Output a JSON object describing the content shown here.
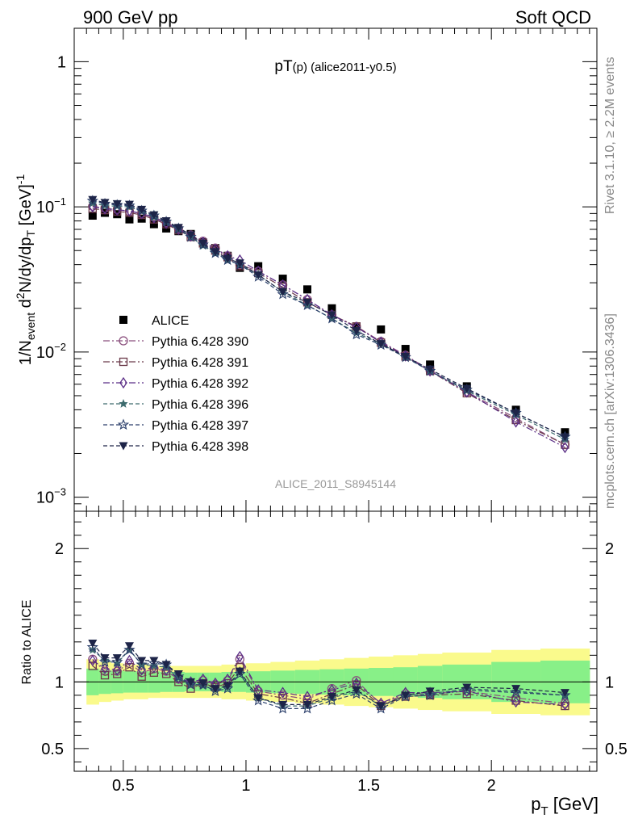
{
  "header": {
    "left": "900 GeV pp",
    "right": "Soft QCD"
  },
  "side": {
    "rivet": "Rivet 3.1.10, ≥ 2.2M events",
    "mcplots": "mcplots.cern.ch [arXiv:1306.3436]"
  },
  "chart_data": [
    {
      "type": "scatter",
      "panel": "main",
      "title_main": "pT",
      "title_sub": "(p)",
      "title_tail": " (alice2011-y0.5)",
      "analysis_label": "ALICE_2011_S8945144",
      "ylabel": "1/N_event d²N/dy/dp_T [GeV]⁻¹",
      "yscale": "log",
      "xlim": [
        0.3,
        2.43
      ],
      "ylim": [
        0.0008,
        1.7
      ],
      "yticks": [
        {
          "v": 1,
          "base": "1",
          "exp": ""
        },
        {
          "v": 0.1,
          "base": "10",
          "exp": "−1"
        },
        {
          "v": 0.01,
          "base": "10",
          "exp": "−2"
        },
        {
          "v": 0.001,
          "base": "10",
          "exp": "−3"
        }
      ],
      "x": [
        0.375,
        0.425,
        0.475,
        0.525,
        0.575,
        0.625,
        0.675,
        0.725,
        0.775,
        0.825,
        0.875,
        0.925,
        0.975,
        1.05,
        1.15,
        1.25,
        1.35,
        1.45,
        1.55,
        1.65,
        1.75,
        1.9,
        2.1,
        2.3
      ],
      "series": [
        {
          "name": "ALICE",
          "color": "#000000",
          "marker": "square",
          "dash": "none",
          "values": [
            0.087,
            0.091,
            0.089,
            0.082,
            0.083,
            0.076,
            0.071,
            0.068,
            0.065,
            0.057,
            0.052,
            0.046,
            0.038,
            0.039,
            0.032,
            0.027,
            0.02,
            0.015,
            0.0143,
            0.0105,
            0.0082,
            0.0058,
            0.004,
            0.0028
          ]
        },
        {
          "name": "Pythia 6.428 390",
          "color": "#8a4f7d",
          "marker": "circle-open",
          "dash": "8,3,2,3",
          "values": [
            0.101,
            0.098,
            0.096,
            0.093,
            0.09,
            0.085,
            0.078,
            0.071,
            0.064,
            0.058,
            0.052,
            0.046,
            0.04,
            0.036,
            0.029,
            0.023,
            0.018,
            0.015,
            0.0118,
            0.0095,
            0.0075,
            0.0053,
            0.0035,
            0.0023
          ]
        },
        {
          "name": "Pythia 6.428 391",
          "color": "#6b3a4a",
          "marker": "square-open",
          "dash": "8,3,2,3",
          "values": [
            0.097,
            0.095,
            0.093,
            0.091,
            0.088,
            0.082,
            0.076,
            0.069,
            0.062,
            0.056,
            0.05,
            0.045,
            0.039,
            0.035,
            0.028,
            0.022,
            0.018,
            0.015,
            0.0116,
            0.0093,
            0.0074,
            0.0052,
            0.0034,
            0.0023
          ]
        },
        {
          "name": "Pythia 6.428 392",
          "color": "#5a2d86",
          "marker": "diamond-open",
          "dash": "8,3,2,3",
          "values": [
            0.1,
            0.097,
            0.095,
            0.094,
            0.09,
            0.084,
            0.077,
            0.07,
            0.063,
            0.057,
            0.051,
            0.046,
            0.043,
            0.036,
            0.029,
            0.023,
            0.018,
            0.0148,
            0.0117,
            0.0094,
            0.0074,
            0.0053,
            0.0033,
            0.0022
          ]
        },
        {
          "name": "Pythia 6.428 396",
          "color": "#3d6b6e",
          "marker": "star-filled",
          "dash": "5,3",
          "values": [
            0.106,
            0.102,
            0.101,
            0.1,
            0.093,
            0.085,
            0.078,
            0.07,
            0.062,
            0.054,
            0.048,
            0.043,
            0.04,
            0.034,
            0.026,
            0.021,
            0.017,
            0.0135,
            0.0114,
            0.0092,
            0.0074,
            0.0054,
            0.0037,
            0.0025
          ]
        },
        {
          "name": "Pythia 6.428 397",
          "color": "#2b3f6b",
          "marker": "star-open",
          "dash": "5,3",
          "values": [
            0.11,
            0.105,
            0.103,
            0.102,
            0.094,
            0.087,
            0.079,
            0.071,
            0.062,
            0.055,
            0.048,
            0.043,
            0.04,
            0.033,
            0.025,
            0.021,
            0.017,
            0.0132,
            0.0112,
            0.0092,
            0.0074,
            0.0055,
            0.0038,
            0.0026
          ]
        },
        {
          "name": "Pythia 6.428 398",
          "color": "#1d2448",
          "marker": "triangle-down-filled",
          "dash": "5,3",
          "values": [
            0.112,
            0.107,
            0.105,
            0.104,
            0.096,
            0.088,
            0.08,
            0.072,
            0.064,
            0.056,
            0.049,
            0.044,
            0.041,
            0.034,
            0.026,
            0.022,
            0.018,
            0.014,
            0.0114,
            0.0093,
            0.0076,
            0.0056,
            0.0038,
            0.0026
          ]
        }
      ]
    },
    {
      "type": "scatter",
      "panel": "ratio",
      "ylabel": "Ratio to ALICE",
      "xlabel_main": "p",
      "xlabel_sub": "T",
      "xlabel_tail": " [GeV]",
      "xlim": [
        0.3,
        2.43
      ],
      "ylim": [
        0.33,
        2.28
      ],
      "xticks": [
        {
          "v": 0.5,
          "label": "0.5"
        },
        {
          "v": 1,
          "label": "1"
        },
        {
          "v": 1.5,
          "label": "1.5"
        },
        {
          "v": 2,
          "label": "2"
        }
      ],
      "yticks": [
        {
          "v": 0.5,
          "label": "0.5"
        },
        {
          "v": 1,
          "label": "1"
        },
        {
          "v": 2,
          "label": "2"
        }
      ],
      "band_edges": [
        0.35,
        0.4,
        0.45,
        0.5,
        0.55,
        0.6,
        0.65,
        0.7,
        0.75,
        0.8,
        0.85,
        0.9,
        0.95,
        1.0,
        1.1,
        1.2,
        1.3,
        1.4,
        1.5,
        1.6,
        1.7,
        1.8,
        2.0,
        2.2,
        2.4
      ],
      "band_inner": [
        0.1,
        0.09,
        0.085,
        0.08,
        0.08,
        0.08,
        0.075,
        0.075,
        0.07,
        0.07,
        0.07,
        0.075,
        0.075,
        0.08,
        0.085,
        0.09,
        0.095,
        0.1,
        0.105,
        0.11,
        0.12,
        0.13,
        0.15,
        0.16
      ],
      "band_outer": [
        0.17,
        0.15,
        0.14,
        0.13,
        0.13,
        0.12,
        0.12,
        0.12,
        0.12,
        0.12,
        0.12,
        0.13,
        0.13,
        0.14,
        0.15,
        0.16,
        0.17,
        0.18,
        0.19,
        0.2,
        0.21,
        0.22,
        0.24,
        0.25
      ],
      "band_colors": {
        "inner": "#88f088",
        "outer": "#fafa8c"
      },
      "x": [
        0.375,
        0.425,
        0.475,
        0.525,
        0.575,
        0.625,
        0.675,
        0.725,
        0.775,
        0.825,
        0.875,
        0.925,
        0.975,
        1.05,
        1.15,
        1.25,
        1.35,
        1.45,
        1.55,
        1.65,
        1.75,
        1.9,
        2.1,
        2.3
      ],
      "series": [
        {
          "name": "Pythia 6.428 390",
          "color": "#8a4f7d",
          "marker": "circle-open",
          "dash": "8,3,2,3",
          "values": [
            1.17,
            1.08,
            1.08,
            1.14,
            1.07,
            1.1,
            1.08,
            1.02,
            0.99,
            1.01,
            0.98,
            1.01,
            1.17,
            0.93,
            0.9,
            0.87,
            0.95,
            1.01,
            0.83,
            0.91,
            0.91,
            0.93,
            0.88,
            0.84
          ]
        },
        {
          "name": "Pythia 6.428 391",
          "color": "#6b3a4a",
          "marker": "square-open",
          "dash": "8,3,2,3",
          "values": [
            1.12,
            1.05,
            1.06,
            1.11,
            1.04,
            1.07,
            1.06,
            1.0,
            0.95,
            0.99,
            0.96,
            0.99,
            1.11,
            0.91,
            0.88,
            0.84,
            0.91,
            0.98,
            0.82,
            0.89,
            0.9,
            0.91,
            0.86,
            0.82
          ]
        },
        {
          "name": "Pythia 6.428 392",
          "color": "#5a2d86",
          "marker": "diamond-open",
          "dash": "8,3,2,3",
          "values": [
            1.16,
            1.1,
            1.09,
            1.16,
            1.09,
            1.11,
            1.09,
            1.03,
            1.0,
            1.02,
            0.99,
            1.02,
            1.19,
            0.94,
            0.92,
            0.89,
            0.94,
            0.99,
            0.84,
            0.92,
            0.92,
            0.93,
            0.85,
            0.83
          ]
        },
        {
          "name": "Pythia 6.428 396",
          "color": "#3d6b6e",
          "marker": "star-filled",
          "dash": "5,3",
          "values": [
            1.24,
            1.16,
            1.14,
            1.24,
            1.13,
            1.12,
            1.11,
            1.03,
            0.98,
            0.97,
            0.94,
            0.96,
            1.07,
            0.88,
            0.82,
            0.82,
            0.88,
            0.93,
            0.82,
            0.9,
            0.91,
            0.95,
            0.93,
            0.9
          ]
        },
        {
          "name": "Pythia 6.428 397",
          "color": "#2b3f6b",
          "marker": "star-open",
          "dash": "5,3",
          "values": [
            1.26,
            1.15,
            1.15,
            1.24,
            1.13,
            1.14,
            1.13,
            1.04,
            0.98,
            0.98,
            0.93,
            0.95,
            1.06,
            0.86,
            0.8,
            0.8,
            0.86,
            0.91,
            0.8,
            0.89,
            0.9,
            0.94,
            0.92,
            0.9
          ]
        },
        {
          "name": "Pythia 6.428 398",
          "color": "#1d2448",
          "marker": "triangle-down-filled",
          "dash": "5,3",
          "values": [
            1.29,
            1.18,
            1.18,
            1.27,
            1.16,
            1.16,
            1.13,
            1.06,
            1.0,
            0.99,
            0.95,
            0.97,
            1.08,
            0.88,
            0.83,
            0.83,
            0.89,
            0.94,
            0.82,
            0.9,
            0.93,
            0.96,
            0.95,
            0.92
          ]
        }
      ]
    }
  ]
}
